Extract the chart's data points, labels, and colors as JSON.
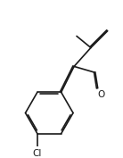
{
  "bg_color": "#ffffff",
  "line_color": "#1a1a1a",
  "line_width": 1.2,
  "figsize": [
    1.38,
    1.77
  ],
  "dpi": 100,
  "label_Cl": "Cl",
  "label_O": "O",
  "font_size": 7.5
}
